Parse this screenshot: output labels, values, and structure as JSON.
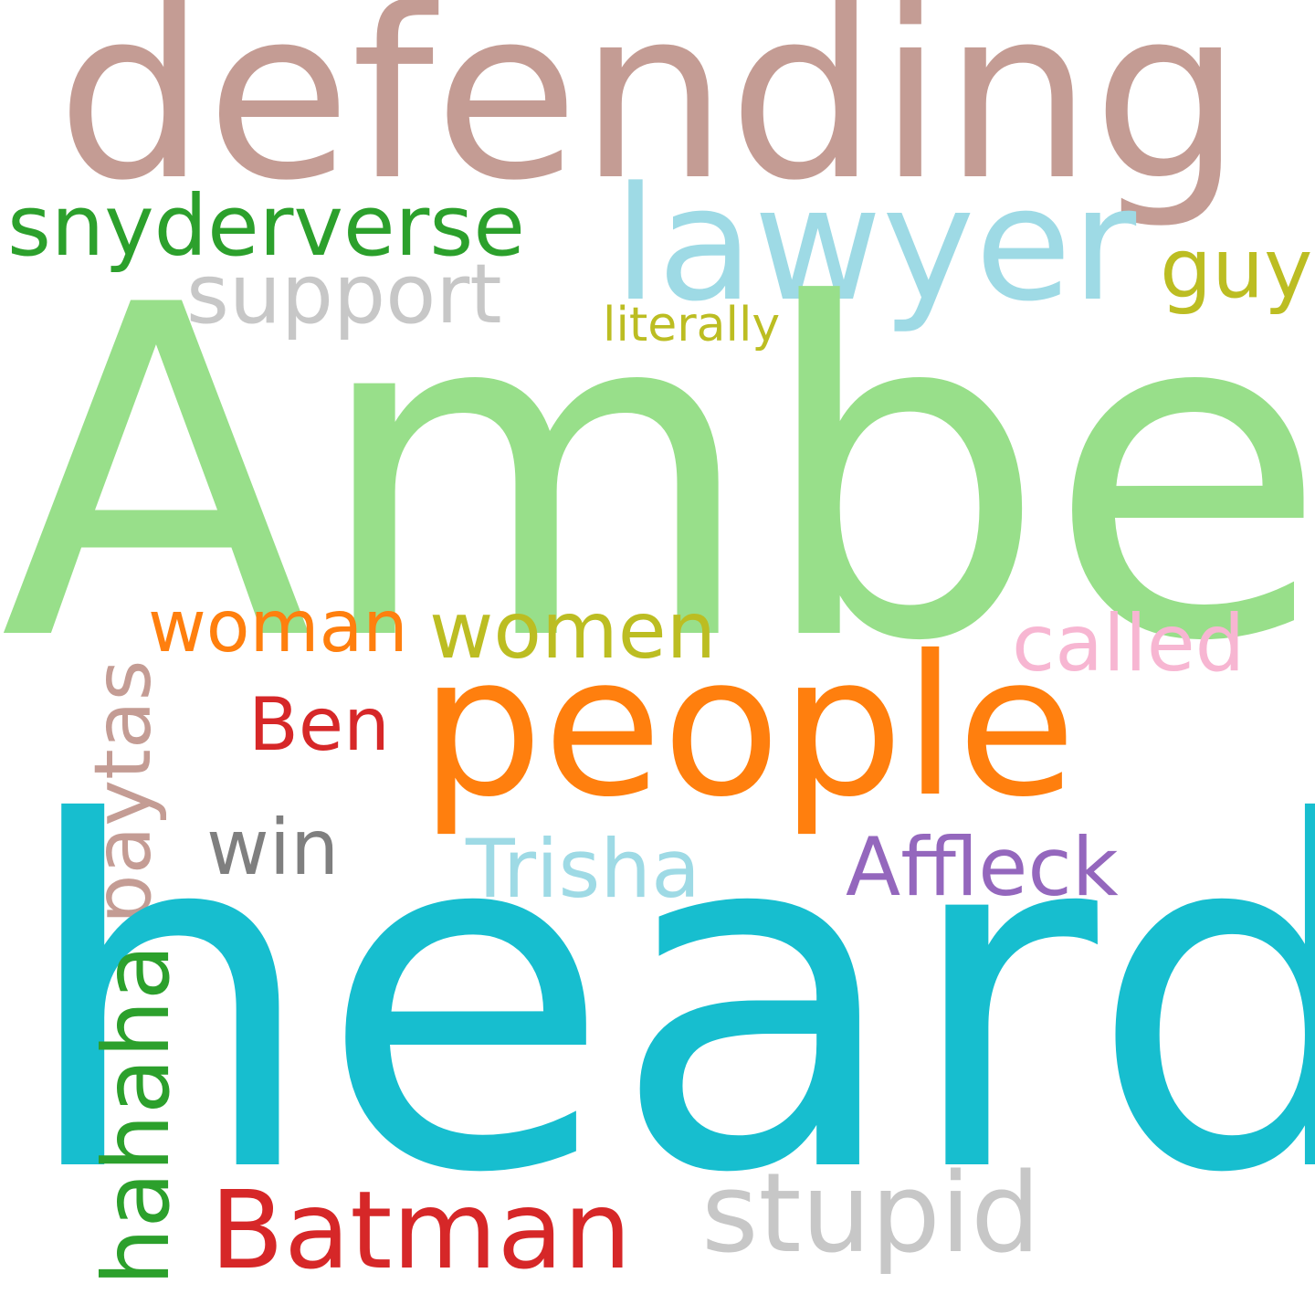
{
  "words": {
    "defending": {
      "text": "defending",
      "color": "#c49c94"
    },
    "lawyer": {
      "text": "lawyer",
      "color": "#9edae5"
    },
    "snyderverse": {
      "text": "snyderverse",
      "color": "#2ca02c"
    },
    "guy": {
      "text": "guy",
      "color": "#bcbd22"
    },
    "support": {
      "text": "support",
      "color": "#c7c7c7"
    },
    "literally": {
      "text": "literally",
      "color": "#bcbd22"
    },
    "amber": {
      "text": "Amber",
      "color": "#98df8a"
    },
    "woman": {
      "text": "woman",
      "color": "#ff7f0e"
    },
    "women": {
      "text": "women",
      "color": "#bcbd22"
    },
    "called": {
      "text": "called",
      "color": "#f7b6d2"
    },
    "ben": {
      "text": "Ben",
      "color": "#d62728"
    },
    "people": {
      "text": "people",
      "color": "#ff7f0e"
    },
    "paytas": {
      "text": "paytas",
      "color": "#c49c94"
    },
    "win": {
      "text": "win",
      "color": "#7f7f7f"
    },
    "trisha": {
      "text": "Trisha",
      "color": "#9edae5"
    },
    "affleck": {
      "text": "Affleck",
      "color": "#9467bd"
    },
    "heard": {
      "text": "heard",
      "color": "#17becf"
    },
    "hahaha": {
      "text": "hahaha",
      "color": "#2ca02c"
    },
    "batman": {
      "text": "Batman",
      "color": "#d62728"
    },
    "stupid": {
      "text": "stupid",
      "color": "#c7c7c7"
    }
  }
}
